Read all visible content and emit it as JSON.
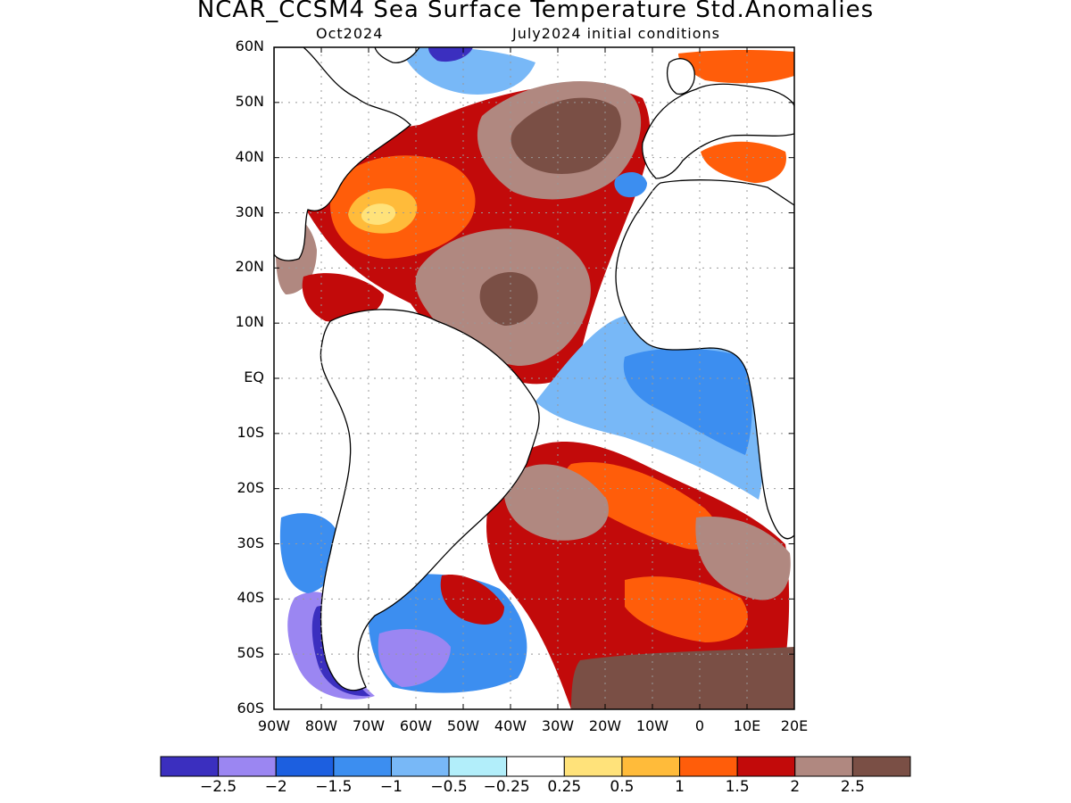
{
  "header": {
    "title": "NCAR_CCSM4 Sea Surface Temperature Std.Anomalies",
    "valid_month": "Oct2024",
    "init": "July2024 initial conditions"
  },
  "axes": {
    "lat_labels": [
      "60N",
      "50N",
      "40N",
      "30N",
      "20N",
      "10N",
      "EQ",
      "10S",
      "20S",
      "30S",
      "40S",
      "50S",
      "60S"
    ],
    "lon_labels": [
      "90W",
      "80W",
      "70W",
      "60W",
      "50W",
      "40W",
      "30W",
      "20W",
      "10W",
      "0",
      "10E",
      "20E"
    ]
  },
  "colorbar": {
    "colors": [
      "#3b2fbf",
      "#9b86f2",
      "#1c5fe0",
      "#3c8ef0",
      "#78b8f7",
      "#b2eefa",
      "#ffffff",
      "#ffe27a",
      "#ffbb3a",
      "#ff5d0a",
      "#c20a0a",
      "#b08880",
      "#7a4f45"
    ],
    "labels": [
      "−2.5",
      "−2",
      "−1.5",
      "−1",
      "−0.5",
      "−0.25",
      "0.25",
      "0.5",
      "1",
      "1.5",
      "2",
      "2.5"
    ]
  }
}
